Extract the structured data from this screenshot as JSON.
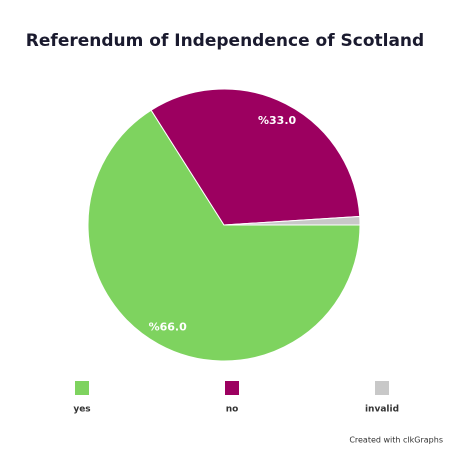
{
  "chart_data": {
    "type": "pie",
    "title": "Referendum of Independence of Scotland",
    "categories": [
      "yes",
      "no",
      "invalid"
    ],
    "values": [
      66.0,
      33.0,
      1.0
    ],
    "value_labels": [
      "%66.0",
      "%33.0",
      null
    ],
    "colors": [
      "#7ed35f",
      "#9c0060",
      "#c8c8c8"
    ],
    "footer": "Created with clkGraphs"
  }
}
